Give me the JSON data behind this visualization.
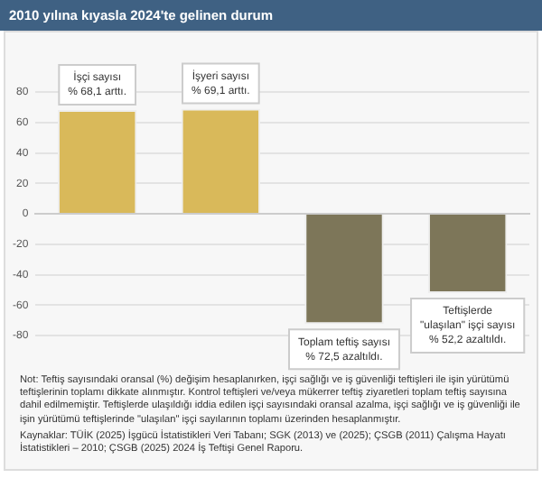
{
  "chart_data": {
    "type": "bar",
    "title": "2010 yılına kıyasla 2024'te gelinen durum",
    "categories": [
      null,
      null,
      null,
      null
    ],
    "values": [
      68.1,
      69.1,
      -72.5,
      -52.2
    ],
    "colors": [
      "#d9b95a",
      "#d9b95a",
      "#7d7659",
      "#7d7659"
    ],
    "ylim": [
      -80,
      80
    ],
    "yticks": [
      -80,
      -60,
      -40,
      -20,
      0,
      20,
      40,
      60,
      80
    ],
    "grid": "y",
    "annotations": [
      {
        "text": "İşçi sayısı\n% 68,1 arttı.",
        "y": 68.1
      },
      {
        "text": "İşyeri sayısı\n% 69,1 arttı.",
        "y": 69.1
      },
      {
        "text": "Toplam teftiş sayısı\n% 72,5 azaltıldı.",
        "y": -72.5
      },
      {
        "text": "Teftişlerde\n\"ulaşılan\" işçi sayısı\n% 52,2 azaltıldı.",
        "y": -52.2
      },
      "Not: Teftiş sayısındaki oransal (%) değişim hesaplanırken, işçi sağlığı ve iş güvenliği teftişleri ile işin yürütümü teftişlerinin toplamı dikkate alınmıştır. Kontrol teftişleri ve/veya mükerrer teftiş ziyaretleri toplam teftiş sayısına dahil edilmemiştir. Teftişlerde ulaşıldığı iddia edilen işçi sayısındaki oransal azalma, işçi sağlığı ve iş güvenliği ile işin yürütümü teftişlerinde \"ulaşılan\" işçi sayılarının toplamı üzerinden hesaplanmıştır.",
      "Kaynaklar: TÜİK (2025) İşgücü İstatistikleri Veri Tabanı; SGK (2013) ve (2025); ÇSGB (2011) Çalışma Hayatı İstatistikleri – 2010; ÇSGB (2025) 2024 İş Teftişi Genel Raporu."
    ]
  }
}
